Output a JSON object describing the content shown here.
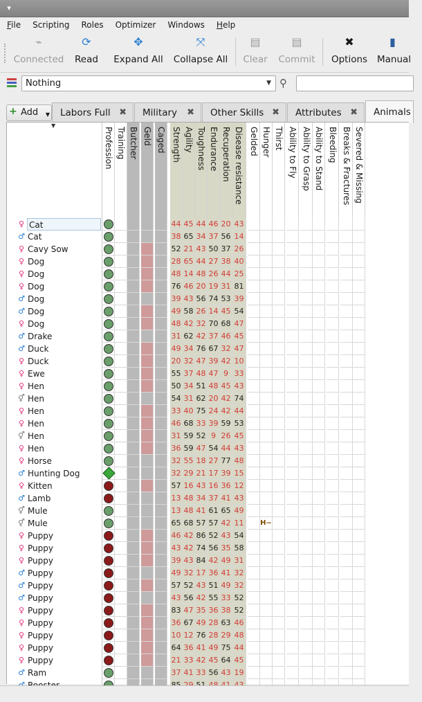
{
  "menu": [
    {
      "k": "F",
      "r": "ile"
    },
    {
      "k": "",
      "r": "Scripting"
    },
    {
      "k": "",
      "r": "Roles"
    },
    {
      "k": "",
      "r": "Optimizer"
    },
    {
      "k": "",
      "r": "Windows"
    },
    {
      "k": "H",
      "r": "elp"
    }
  ],
  "toolbar": {
    "connected": "Connected",
    "read": "Read",
    "expand_all": "Expand All",
    "collapse_all": "Collapse All",
    "clear": "Clear",
    "commit": "Commit",
    "options": "Options",
    "manual": "Manual"
  },
  "filter": {
    "value": "Nothing"
  },
  "tabs": {
    "add": "Add",
    "items": [
      "Labors Full",
      "Military",
      "Other Skills",
      "Attributes",
      "Animals"
    ],
    "active": "Animals"
  },
  "columns": [
    "Profession",
    "Training",
    "Butcher",
    "Geld",
    "Caged",
    "Strength",
    "Agility",
    "Toughness",
    "Endurance",
    "Recuperation",
    "Disease resistance",
    "Gelded",
    "Hunger",
    "Thirst",
    "Ability to Fly",
    "Ability to Grasp",
    "Ability to Stand",
    "Bleeding",
    "Breaks & Fractures",
    "Severed & Missing"
  ],
  "colors": {
    "female": "#e0307a",
    "male": "#2a7fd0",
    "unknown": "#7a7a7a",
    "red_value": "#d23a3a"
  },
  "rows": [
    {
      "sex": "f",
      "name": "Cat",
      "prof": "g",
      "geld": "gray",
      "a": [
        "44",
        "45",
        "44",
        "46",
        "20",
        "43"
      ],
      "ar": [
        1,
        1,
        1,
        1,
        1,
        1
      ]
    },
    {
      "sex": "m",
      "name": "Cat",
      "prof": "g",
      "geld": "gray",
      "a": [
        "38",
        "65",
        "34",
        "37",
        "56",
        "14"
      ],
      "ar": [
        1,
        0,
        1,
        1,
        0,
        1
      ]
    },
    {
      "sex": "f",
      "name": "Cavy Sow",
      "prof": "g",
      "geld": "pink",
      "a": [
        "52",
        "21",
        "43",
        "50",
        "37",
        "26"
      ],
      "ar": [
        0,
        1,
        1,
        0,
        0,
        1
      ]
    },
    {
      "sex": "f",
      "name": "Dog",
      "prof": "g",
      "geld": "pink",
      "a": [
        "28",
        "65",
        "44",
        "27",
        "38",
        "40"
      ],
      "ar": [
        1,
        1,
        1,
        1,
        1,
        1
      ]
    },
    {
      "sex": "f",
      "name": "Dog",
      "prof": "g",
      "geld": "pink",
      "a": [
        "48",
        "14",
        "48",
        "26",
        "44",
        "25"
      ],
      "ar": [
        1,
        1,
        1,
        1,
        1,
        1
      ]
    },
    {
      "sex": "f",
      "name": "Dog",
      "prof": "g",
      "geld": "pink",
      "a": [
        "76",
        "46",
        "20",
        "19",
        "31",
        "81"
      ],
      "ar": [
        0,
        1,
        1,
        1,
        1,
        0
      ]
    },
    {
      "sex": "m",
      "name": "Dog",
      "prof": "g",
      "geld": "gray",
      "a": [
        "39",
        "43",
        "56",
        "74",
        "53",
        "39"
      ],
      "ar": [
        1,
        1,
        0,
        0,
        0,
        1
      ]
    },
    {
      "sex": "m",
      "name": "Dog",
      "prof": "g",
      "geld": "pink",
      "a": [
        "49",
        "58",
        "26",
        "14",
        "45",
        "54"
      ],
      "ar": [
        1,
        0,
        1,
        1,
        1,
        0
      ]
    },
    {
      "sex": "f",
      "name": "Dog",
      "prof": "g",
      "geld": "pink",
      "a": [
        "48",
        "42",
        "32",
        "70",
        "68",
        "47"
      ],
      "ar": [
        1,
        1,
        1,
        0,
        0,
        1
      ]
    },
    {
      "sex": "m",
      "name": "Drake",
      "prof": "g",
      "geld": "gray",
      "a": [
        "31",
        "62",
        "42",
        "37",
        "46",
        "45"
      ],
      "ar": [
        1,
        0,
        1,
        1,
        1,
        1
      ]
    },
    {
      "sex": "m",
      "name": "Duck",
      "prof": "g",
      "geld": "pink",
      "a": [
        "49",
        "34",
        "76",
        "67",
        "32",
        "47"
      ],
      "ar": [
        1,
        1,
        0,
        0,
        1,
        1
      ]
    },
    {
      "sex": "f",
      "name": "Duck",
      "prof": "g",
      "geld": "pink",
      "a": [
        "20",
        "32",
        "47",
        "39",
        "42",
        "10"
      ],
      "ar": [
        1,
        1,
        1,
        1,
        1,
        1
      ]
    },
    {
      "sex": "f",
      "name": "Ewe",
      "prof": "g",
      "geld": "pink",
      "a": [
        "55",
        "37",
        "48",
        "47",
        "9",
        "33"
      ],
      "ar": [
        0,
        1,
        1,
        1,
        1,
        1
      ]
    },
    {
      "sex": "f",
      "name": "Hen",
      "prof": "g",
      "geld": "pink",
      "a": [
        "50",
        "34",
        "51",
        "48",
        "45",
        "43"
      ],
      "ar": [
        0,
        1,
        0,
        1,
        1,
        1
      ]
    },
    {
      "sex": "u",
      "name": "Hen",
      "prof": "g",
      "geld": "gray",
      "a": [
        "54",
        "31",
        "62",
        "20",
        "42",
        "74"
      ],
      "ar": [
        0,
        1,
        0,
        1,
        1,
        0
      ]
    },
    {
      "sex": "f",
      "name": "Hen",
      "prof": "g",
      "geld": "pink",
      "a": [
        "33",
        "40",
        "75",
        "24",
        "42",
        "44"
      ],
      "ar": [
        1,
        1,
        0,
        1,
        1,
        1
      ]
    },
    {
      "sex": "f",
      "name": "Hen",
      "prof": "g",
      "geld": "pink",
      "a": [
        "46",
        "68",
        "33",
        "39",
        "59",
        "53"
      ],
      "ar": [
        1,
        0,
        1,
        1,
        0,
        0
      ]
    },
    {
      "sex": "u",
      "name": "Hen",
      "prof": "g",
      "geld": "pink",
      "a": [
        "31",
        "59",
        "52",
        "9",
        "26",
        "45"
      ],
      "ar": [
        1,
        0,
        0,
        1,
        1,
        1
      ]
    },
    {
      "sex": "f",
      "name": "Hen",
      "prof": "g",
      "geld": "pink",
      "a": [
        "36",
        "59",
        "47",
        "54",
        "44",
        "43"
      ],
      "ar": [
        1,
        0,
        1,
        0,
        1,
        1
      ]
    },
    {
      "sex": "f",
      "name": "Horse",
      "prof": "g",
      "geld": "gray",
      "a": [
        "32",
        "55",
        "18",
        "27",
        "77",
        "48"
      ],
      "ar": [
        1,
        1,
        1,
        1,
        0,
        1
      ]
    },
    {
      "sex": "m",
      "name": "Hunting Dog",
      "prof": "d",
      "geld": "gray",
      "a": [
        "32",
        "29",
        "21",
        "17",
        "39",
        "15"
      ],
      "ar": [
        1,
        1,
        1,
        1,
        1,
        1
      ]
    },
    {
      "sex": "f",
      "name": "Kitten",
      "prof": "r",
      "geld": "pink",
      "a": [
        "57",
        "16",
        "43",
        "16",
        "36",
        "12"
      ],
      "ar": [
        0,
        1,
        1,
        1,
        1,
        1
      ]
    },
    {
      "sex": "m",
      "name": "Lamb",
      "prof": "r",
      "geld": "gray",
      "a": [
        "13",
        "48",
        "34",
        "37",
        "41",
        "43"
      ],
      "ar": [
        1,
        1,
        1,
        1,
        1,
        1
      ]
    },
    {
      "sex": "u",
      "name": "Mule",
      "prof": "g",
      "geld": "gray",
      "a": [
        "13",
        "48",
        "41",
        "61",
        "65",
        "49"
      ],
      "ar": [
        1,
        1,
        1,
        0,
        0,
        1
      ]
    },
    {
      "sex": "u",
      "name": "Mule",
      "prof": "g",
      "geld": "gray",
      "a": [
        "65",
        "68",
        "57",
        "57",
        "42",
        "11"
      ],
      "ar": [
        0,
        0,
        0,
        0,
        1,
        1
      ],
      "hunger": "H~"
    },
    {
      "sex": "f",
      "name": "Puppy",
      "prof": "r",
      "geld": "pink",
      "a": [
        "46",
        "42",
        "86",
        "52",
        "43",
        "54"
      ],
      "ar": [
        1,
        1,
        0,
        0,
        1,
        0
      ]
    },
    {
      "sex": "f",
      "name": "Puppy",
      "prof": "r",
      "geld": "pink",
      "a": [
        "43",
        "42",
        "74",
        "56",
        "35",
        "58"
      ],
      "ar": [
        1,
        1,
        0,
        0,
        1,
        0
      ]
    },
    {
      "sex": "f",
      "name": "Puppy",
      "prof": "r",
      "geld": "pink",
      "a": [
        "39",
        "43",
        "84",
        "42",
        "49",
        "31"
      ],
      "ar": [
        1,
        1,
        0,
        1,
        1,
        1
      ]
    },
    {
      "sex": "m",
      "name": "Puppy",
      "prof": "r",
      "geld": "gray",
      "a": [
        "49",
        "32",
        "17",
        "36",
        "41",
        "32"
      ],
      "ar": [
        1,
        1,
        1,
        1,
        1,
        1
      ]
    },
    {
      "sex": "m",
      "name": "Puppy",
      "prof": "r",
      "geld": "pink",
      "a": [
        "57",
        "52",
        "43",
        "51",
        "49",
        "32"
      ],
      "ar": [
        0,
        0,
        1,
        0,
        1,
        1
      ]
    },
    {
      "sex": "m",
      "name": "Puppy",
      "prof": "r",
      "geld": "gray",
      "a": [
        "43",
        "56",
        "42",
        "55",
        "33",
        "52"
      ],
      "ar": [
        1,
        0,
        1,
        0,
        1,
        0
      ]
    },
    {
      "sex": "f",
      "name": "Puppy",
      "prof": "r",
      "geld": "pink",
      "a": [
        "83",
        "47",
        "35",
        "36",
        "38",
        "52"
      ],
      "ar": [
        0,
        1,
        1,
        1,
        1,
        0
      ]
    },
    {
      "sex": "f",
      "name": "Puppy",
      "prof": "r",
      "geld": "pink",
      "a": [
        "36",
        "67",
        "49",
        "28",
        "63",
        "46"
      ],
      "ar": [
        1,
        0,
        1,
        1,
        0,
        1
      ]
    },
    {
      "sex": "f",
      "name": "Puppy",
      "prof": "r",
      "geld": "pink",
      "a": [
        "10",
        "12",
        "76",
        "28",
        "29",
        "48"
      ],
      "ar": [
        1,
        1,
        0,
        1,
        1,
        1
      ]
    },
    {
      "sex": "f",
      "name": "Puppy",
      "prof": "r",
      "geld": "pink",
      "a": [
        "64",
        "36",
        "41",
        "49",
        "75",
        "44"
      ],
      "ar": [
        0,
        1,
        1,
        1,
        0,
        1
      ]
    },
    {
      "sex": "f",
      "name": "Puppy",
      "prof": "r",
      "geld": "pink",
      "a": [
        "21",
        "33",
        "42",
        "45",
        "64",
        "45"
      ],
      "ar": [
        1,
        1,
        1,
        1,
        0,
        1
      ]
    },
    {
      "sex": "m",
      "name": "Ram",
      "prof": "g",
      "geld": "gray",
      "a": [
        "37",
        "41",
        "33",
        "56",
        "43",
        "19"
      ],
      "ar": [
        1,
        1,
        1,
        0,
        1,
        1
      ]
    },
    {
      "sex": "m",
      "name": "Rooster",
      "prof": "g",
      "geld": "gray",
      "a": [
        "85",
        "29",
        "51",
        "48",
        "41",
        "43"
      ],
      "ar": [
        0,
        1,
        0,
        1,
        1,
        1
      ]
    }
  ]
}
